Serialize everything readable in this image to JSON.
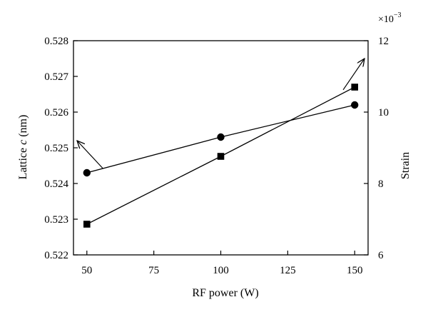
{
  "chart_data": {
    "type": "line",
    "xlabel": "RF power (W)",
    "ylabel": {
      "prefix": "Lattice ",
      "italic": "c",
      "suffix": " (nm)"
    },
    "y2label": "Strain",
    "y2_multiplier": {
      "base": "×10",
      "exponent": "−3"
    },
    "x_ticks": [
      50,
      75,
      100,
      125,
      150
    ],
    "x_tick_labels": [
      "50",
      "75",
      "100",
      "125",
      "150"
    ],
    "xlim": [
      45,
      155
    ],
    "y_ticks": [
      0.522,
      0.523,
      0.524,
      0.525,
      0.526,
      0.527,
      0.528
    ],
    "y_tick_labels": [
      "0.522",
      "0.523",
      "0.524",
      "0.525",
      "0.526",
      "0.527",
      "0.528"
    ],
    "ylim": [
      0.522,
      0.528
    ],
    "y2_ticks": [
      6,
      8,
      10,
      12
    ],
    "y2_tick_labels": [
      "6",
      "8",
      "10",
      "12"
    ],
    "y2lim": [
      6,
      12
    ],
    "grid": false,
    "series": [
      {
        "marker": "circle",
        "axis": "left",
        "x": [
          50,
          100,
          150
        ],
        "y": [
          0.5243,
          0.5253,
          0.5262
        ]
      },
      {
        "marker": "square",
        "axis": "right",
        "x": [
          50,
          100,
          150
        ],
        "y": [
          6.86,
          8.76,
          10.7
        ]
      }
    ],
    "annotations": [
      {
        "type": "arrow",
        "points_to": "left-axis",
        "series": 0
      },
      {
        "type": "arrow",
        "points_to": "right-axis",
        "series": 1
      }
    ]
  }
}
